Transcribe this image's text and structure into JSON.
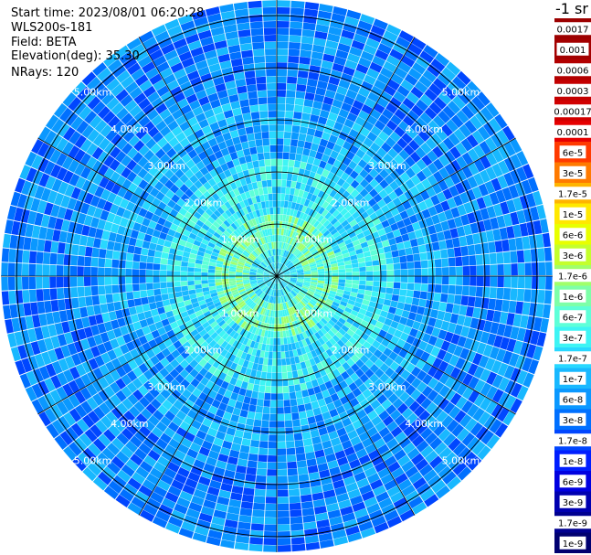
{
  "header": {
    "start_time": "Start time: 2023/08/01 06:20:28",
    "instrument": "WLS200s-181",
    "field": "Field: BETA",
    "elevation": "Elevation(deg): 35.30",
    "nrays": "NRays: 120"
  },
  "colorbar": {
    "unit_label": "-1 sr",
    "entries": [
      {
        "label": "0.0017",
        "color": "#9c0000"
      },
      {
        "label": "0.001",
        "color": "#a30000"
      },
      {
        "label": "0.0006",
        "color": "#b20000"
      },
      {
        "label": "0.0003",
        "color": "#c40000"
      },
      {
        "label": "0.00017",
        "color": "#d10000"
      },
      {
        "label": "0.0001",
        "color": "#e60000"
      },
      {
        "label": "6e-5",
        "color": "#ff3a00"
      },
      {
        "label": "3e-5",
        "color": "#ff7a00"
      },
      {
        "label": "1.7e-5",
        "color": "#ffb400"
      },
      {
        "label": "1e-5",
        "color": "#ffe800"
      },
      {
        "label": "6e-6",
        "color": "#e8ff00"
      },
      {
        "label": "3e-6",
        "color": "#c4ff2c"
      },
      {
        "label": "1.7e-6",
        "color": "#a0ff6a"
      },
      {
        "label": "1e-6",
        "color": "#7dffa8"
      },
      {
        "label": "6e-7",
        "color": "#5effd8"
      },
      {
        "label": "3e-7",
        "color": "#3ef4f4"
      },
      {
        "label": "1.7e-7",
        "color": "#28d8ff"
      },
      {
        "label": "1e-7",
        "color": "#18b8ff"
      },
      {
        "label": "6e-8",
        "color": "#0a98ff"
      },
      {
        "label": "3e-8",
        "color": "#0070ff"
      },
      {
        "label": "1.7e-8",
        "color": "#0046ff"
      },
      {
        "label": "1e-8",
        "color": "#001eff"
      },
      {
        "label": "6e-9",
        "color": "#0000e0"
      },
      {
        "label": "3e-9",
        "color": "#0000b0"
      },
      {
        "label": "1.7e-9",
        "color": "#000090"
      },
      {
        "label": "1e-9",
        "color": "#000070"
      }
    ]
  },
  "chart_data": {
    "type": "heatmap",
    "projection": "polar (PPI scan)",
    "field": "BETA",
    "elevation_deg": 35.3,
    "n_rays": 120,
    "range_max_km": 5.3,
    "range_rings_km": [
      1,
      2,
      3,
      4,
      5
    ],
    "range_ring_labels": [
      "1.00km",
      "2.00km",
      "3.00km",
      "4.00km",
      "5.00km"
    ],
    "radial_spokes_deg": [
      0,
      30,
      60,
      90,
      120,
      150,
      180,
      210,
      240,
      270,
      300,
      330
    ],
    "gates_per_ray": 40,
    "range_profile_dominant_band": [
      {
        "range_km": [
          0.0,
          0.5
        ],
        "value": "3e-7"
      },
      {
        "range_km": [
          0.5,
          1.2
        ],
        "value": "1e-6"
      },
      {
        "range_km": [
          1.2,
          2.2
        ],
        "value": "3e-7"
      },
      {
        "range_km": [
          2.2,
          3.5
        ],
        "value": "1e-7"
      },
      {
        "range_km": [
          3.5,
          5.3
        ],
        "value": "6e-8"
      }
    ],
    "colorscale": "log, 1e-9 to 0.0017 sr^-1"
  }
}
